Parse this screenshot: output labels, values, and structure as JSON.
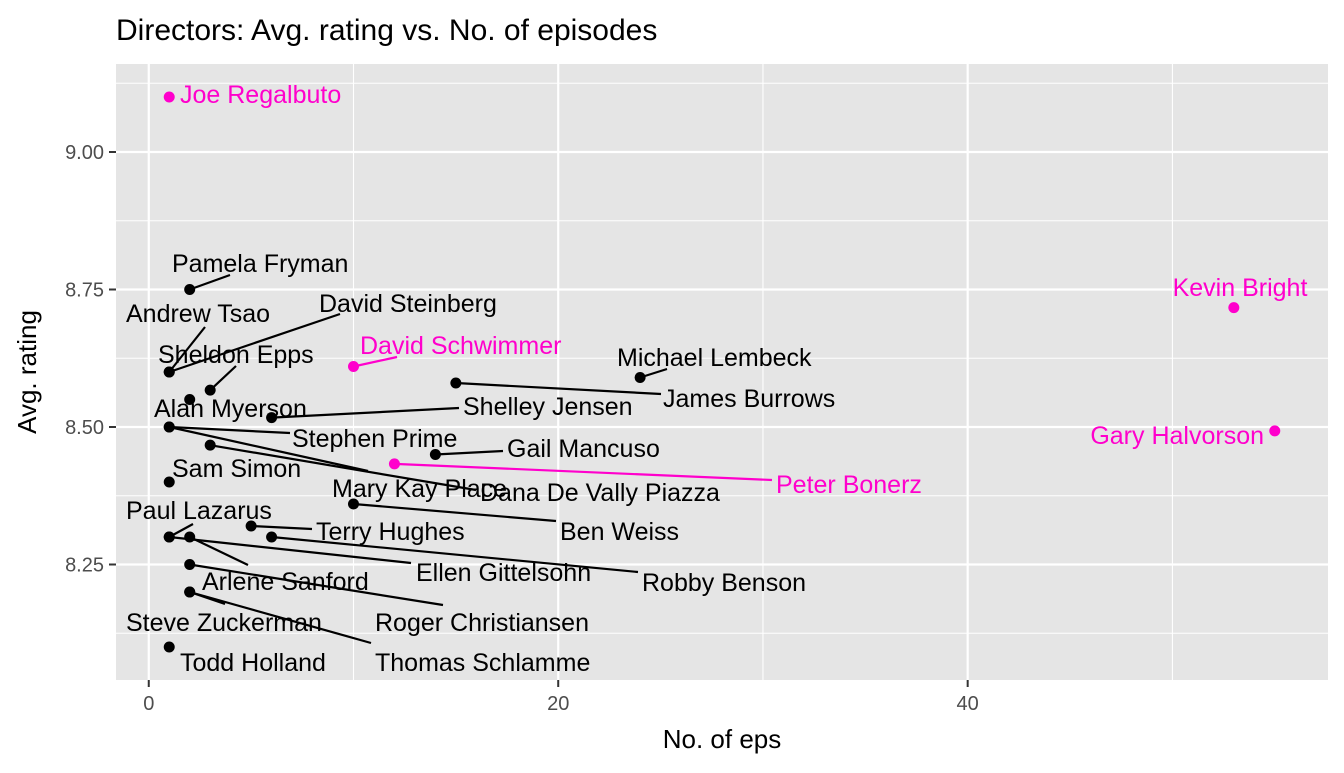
{
  "chart_data": {
    "type": "scatter",
    "title": "Directors: Avg. rating vs. No. of episodes",
    "xlabel": "No. of eps",
    "ylabel": "Avg. rating",
    "xlim": [
      -1.6,
      57.6
    ],
    "ylim": [
      8.04,
      9.16
    ],
    "x_ticks": [
      0,
      20,
      40
    ],
    "y_ticks": [
      8.25,
      8.5,
      8.75,
      9.0
    ],
    "x_tick_labels": [
      "0",
      "20",
      "40"
    ],
    "y_tick_labels": [
      "8.25",
      "8.50",
      "8.75",
      "9.00"
    ],
    "grid": true,
    "background": "#e5e5e5",
    "colors": {
      "highlight": "#ff00cc",
      "default": "#000000",
      "grid": "#ffffff"
    },
    "points": [
      {
        "name": "Joe Regalbuto",
        "x": 1,
        "y": 9.1,
        "highlight": true
      },
      {
        "name": "Pamela Fryman",
        "x": 2,
        "y": 8.75,
        "highlight": false
      },
      {
        "name": "Kevin Bright",
        "x": 53,
        "y": 8.717,
        "highlight": true
      },
      {
        "name": "Andrew Tsao",
        "x": 1,
        "y": 8.6,
        "highlight": false
      },
      {
        "name": "David Steinberg",
        "x": 1,
        "y": 8.6,
        "highlight": false
      },
      {
        "name": "David Schwimmer",
        "x": 10,
        "y": 8.61,
        "highlight": true
      },
      {
        "name": "Sheldon Epps",
        "x": 3,
        "y": 8.567,
        "highlight": false
      },
      {
        "name": "Michael Lembeck",
        "x": 24,
        "y": 8.59,
        "highlight": false
      },
      {
        "name": "James Burrows",
        "x": 15,
        "y": 8.58,
        "highlight": false
      },
      {
        "name": "Alan Myerson",
        "x": 2,
        "y": 8.55,
        "highlight": false
      },
      {
        "name": "Shelley Jensen",
        "x": 6,
        "y": 8.517,
        "highlight": false
      },
      {
        "name": "Gary Halvorson",
        "x": 55,
        "y": 8.493,
        "highlight": true
      },
      {
        "name": "Stephen Prime",
        "x": 1,
        "y": 8.5,
        "highlight": false
      },
      {
        "name": "Gail Mancuso",
        "x": 14,
        "y": 8.45,
        "highlight": false
      },
      {
        "name": "Mary Kay Place",
        "x": 1,
        "y": 8.5,
        "highlight": false
      },
      {
        "name": "Dana De Vally Piazza",
        "x": 3,
        "y": 8.467,
        "highlight": false
      },
      {
        "name": "Peter Bonerz",
        "x": 12,
        "y": 8.433,
        "highlight": true
      },
      {
        "name": "Sam Simon",
        "x": 1,
        "y": 8.4,
        "highlight": false
      },
      {
        "name": "Ben Weiss",
        "x": 10,
        "y": 8.36,
        "highlight": false
      },
      {
        "name": "Terry Hughes",
        "x": 5,
        "y": 8.32,
        "highlight": false
      },
      {
        "name": "Paul Lazarus",
        "x": 1,
        "y": 8.3,
        "highlight": false
      },
      {
        "name": "Ellen Gittelsohn",
        "x": 1,
        "y": 8.3,
        "highlight": false
      },
      {
        "name": "Robby Benson",
        "x": 6,
        "y": 8.3,
        "highlight": false
      },
      {
        "name": "Arlene Sanford",
        "x": 2,
        "y": 8.3,
        "highlight": false
      },
      {
        "name": "Roger Christiansen",
        "x": 2,
        "y": 8.25,
        "highlight": false
      },
      {
        "name": "Steve Zuckerman",
        "x": 2,
        "y": 8.2,
        "highlight": false
      },
      {
        "name": "Thomas Schlamme",
        "x": 2,
        "y": 8.2,
        "highlight": false
      },
      {
        "name": "Todd Holland",
        "x": 1,
        "y": 8.1,
        "highlight": false
      }
    ]
  }
}
